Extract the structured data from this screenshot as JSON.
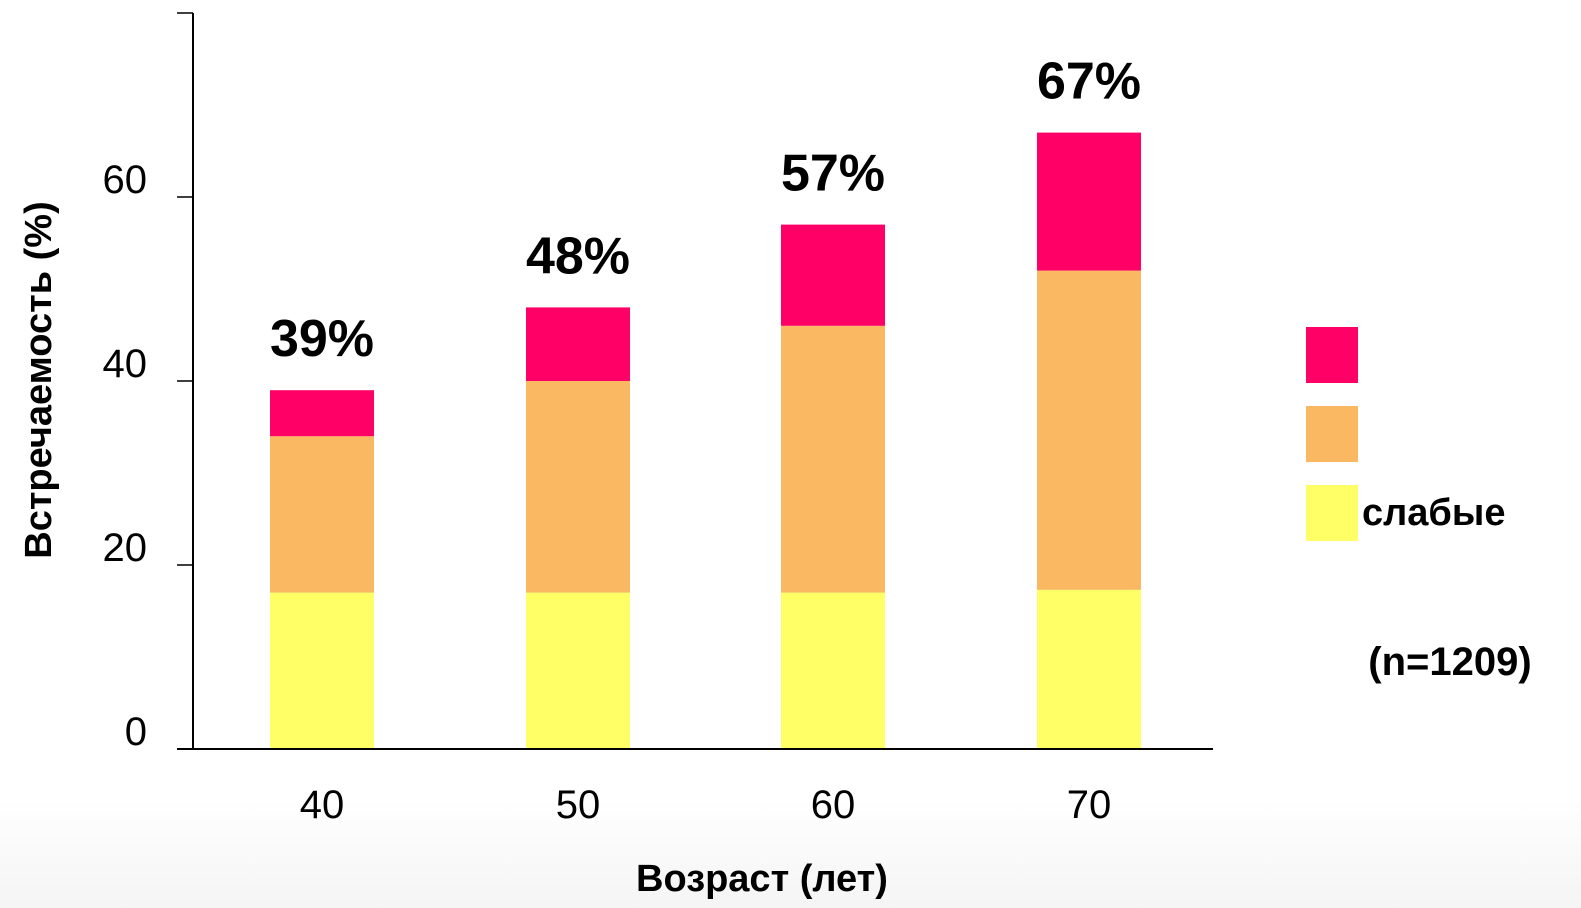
{
  "chart_data": {
    "type": "bar",
    "stacked": true,
    "categories": [
      "40",
      "50",
      "60",
      "70"
    ],
    "series": [
      {
        "values": [
          17,
          17,
          17,
          17.3
        ],
        "color": "#ffff66"
      },
      {
        "values": [
          17,
          23,
          29,
          34.7
        ],
        "color": "#fbb862"
      },
      {
        "values": [
          5,
          8,
          11,
          15
        ],
        "color": "#ff0066"
      }
    ],
    "totals": [
      39,
      48,
      57,
      67
    ],
    "total_labels": [
      "39%",
      "48%",
      "57%",
      "67%"
    ],
    "xlabel": "Возраст (лет)",
    "ylabel": "Встречаемость (%)",
    "yticks": [
      "0",
      "20",
      "40",
      "60"
    ],
    "ylim": [
      0,
      80
    ],
    "grid": false,
    "legend": {
      "position": "right",
      "entries": [
        "",
        "",
        "слабые"
      ]
    },
    "annotation": "(n=1209)"
  }
}
